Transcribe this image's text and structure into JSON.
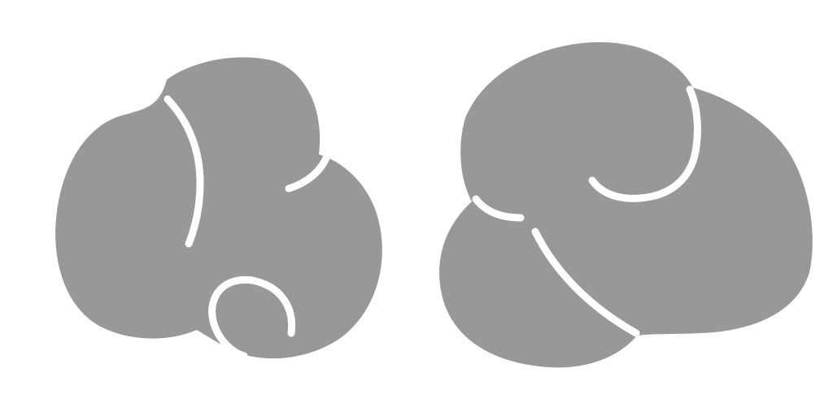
{
  "image": {
    "background_color": "#ffffff",
    "shape_color": "#989898",
    "gap_color": "#ffffff",
    "shapes": [
      {
        "name": "left-clustered-lobes-shape"
      },
      {
        "name": "right-swirled-lobes-shape"
      }
    ]
  }
}
